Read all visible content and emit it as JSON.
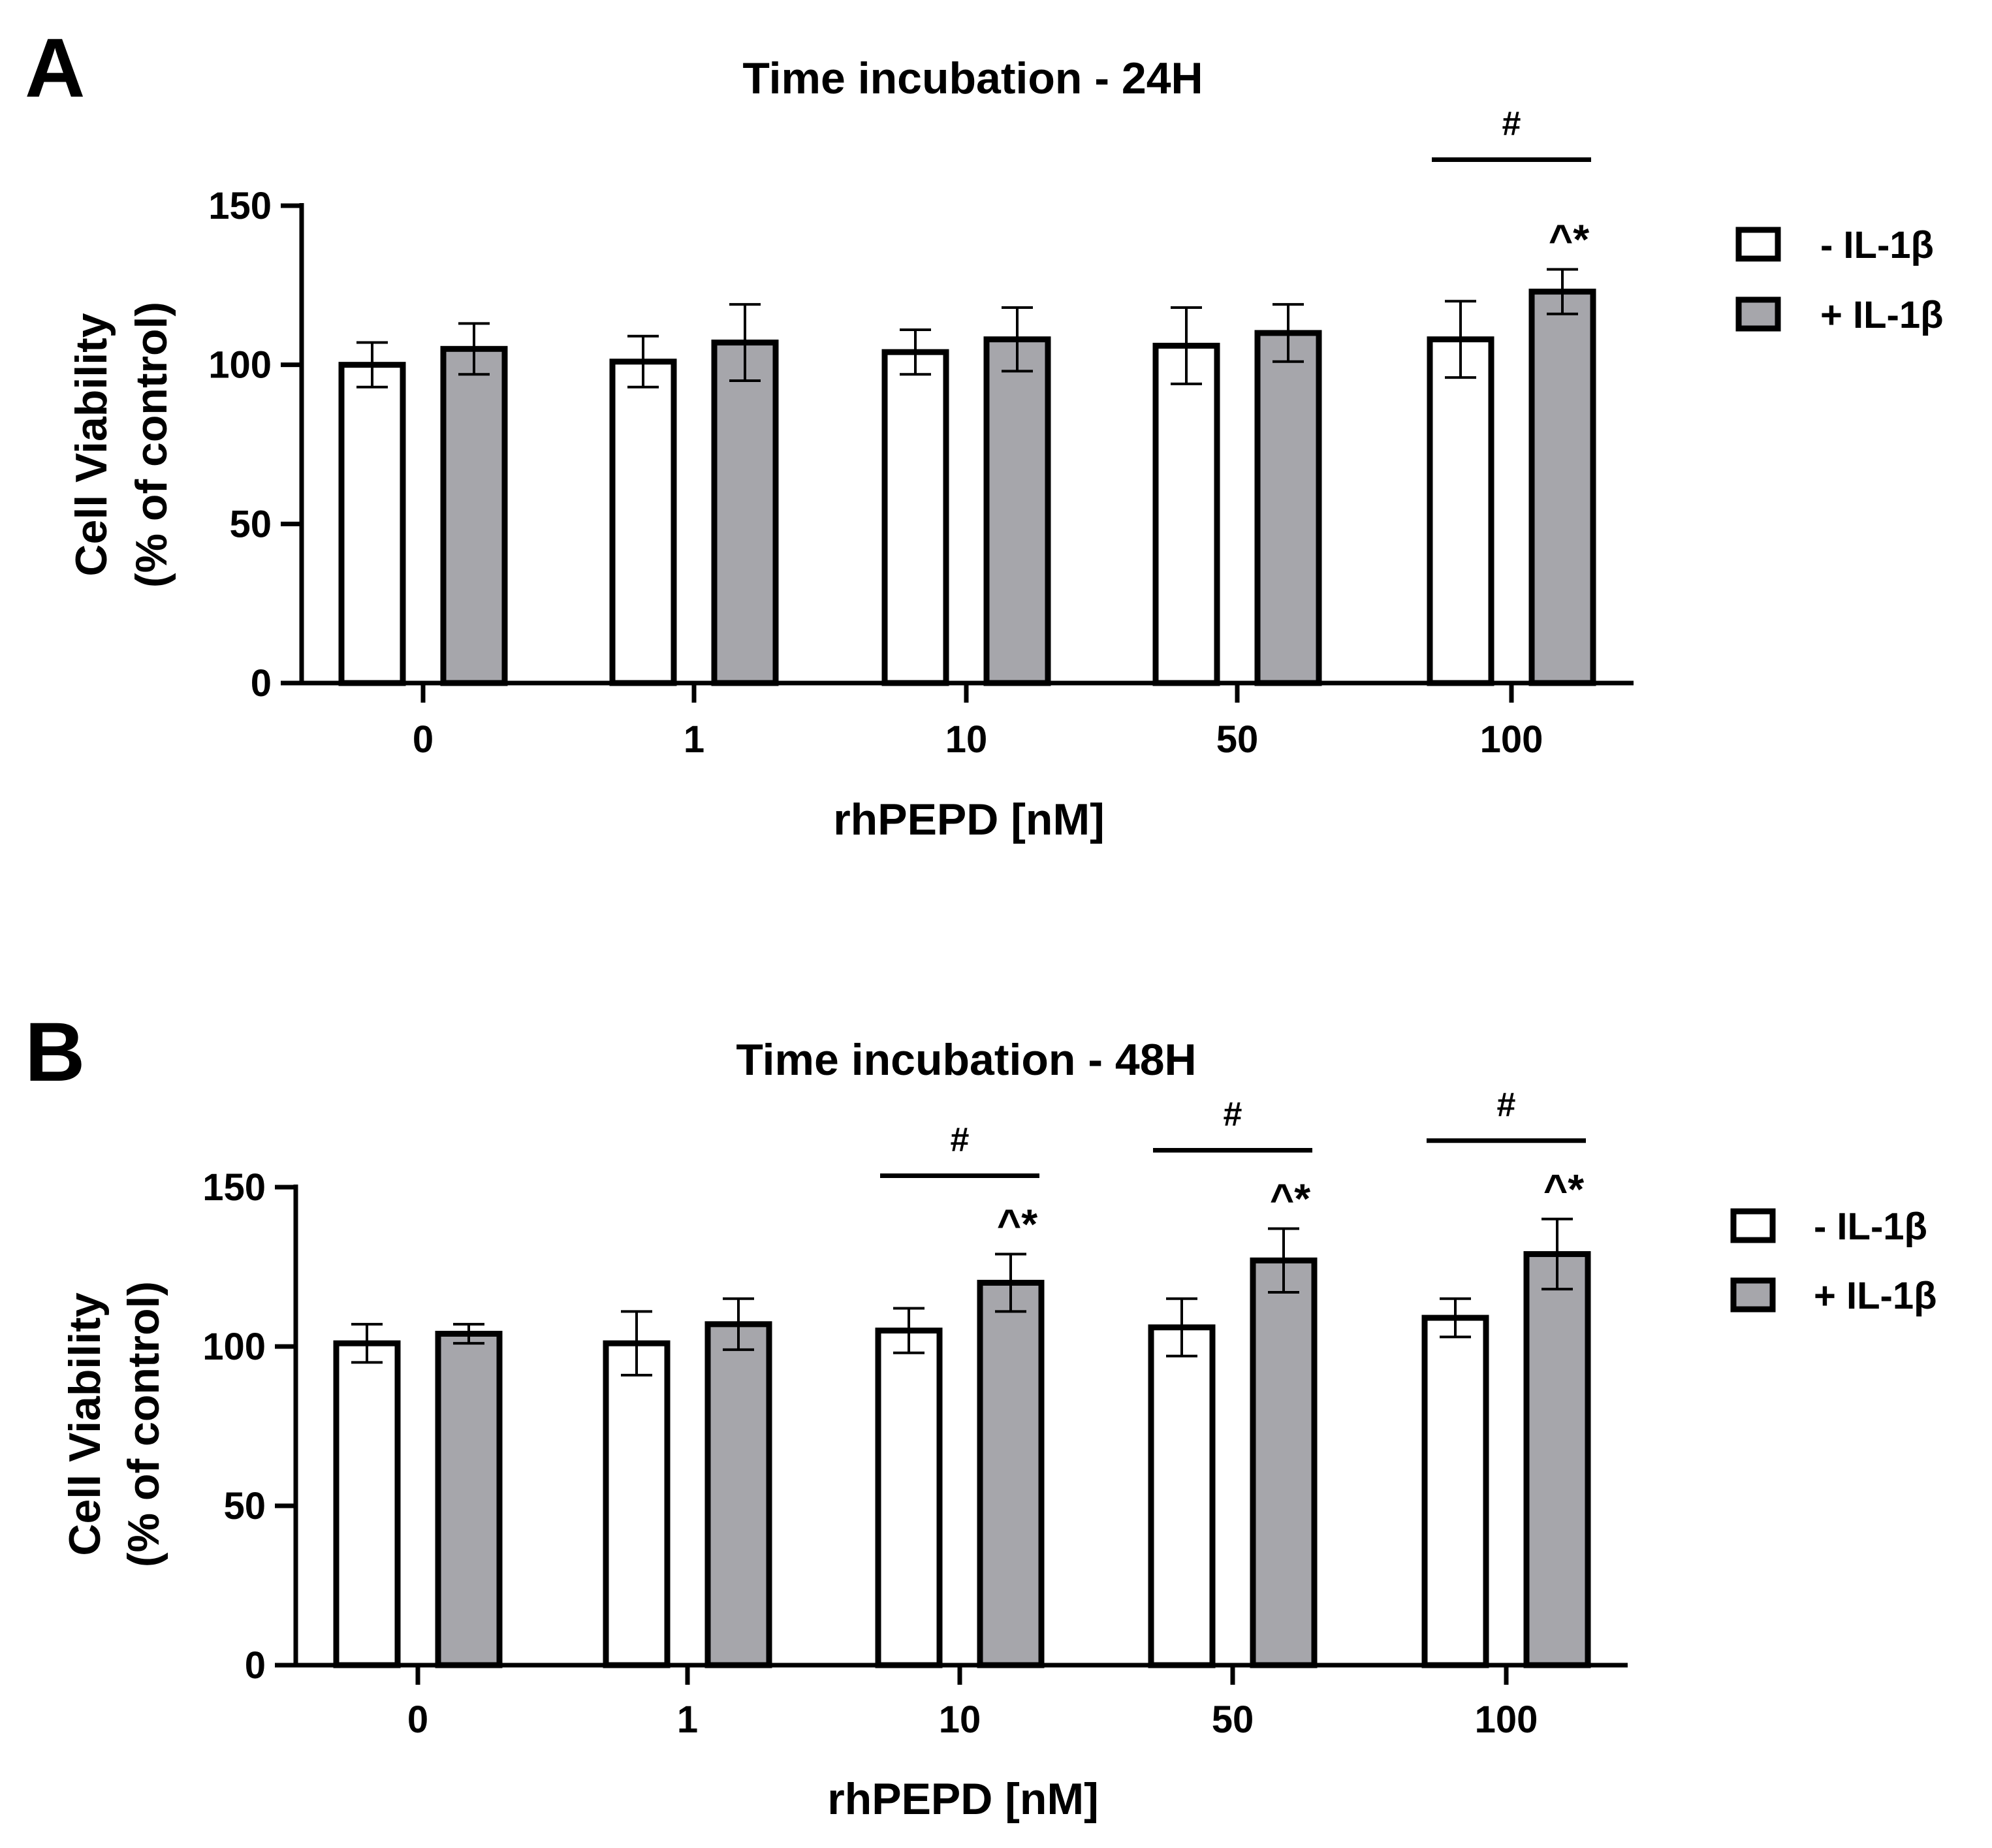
{
  "chart_data": [
    {
      "panel_label": "A",
      "type": "bar",
      "title": "Time incubation - 24H",
      "xlabel": "rhPEPD [nM]",
      "ylabel": [
        "Cell Viability",
        "(% of control)"
      ],
      "ylim": [
        0,
        150
      ],
      "yticks": [
        "0",
        "50",
        "100",
        "150"
      ],
      "categories": [
        "0",
        "1",
        "10",
        "50",
        "100"
      ],
      "series": [
        {
          "name": "- IL-1β",
          "color": "#ffffff",
          "values": [
            100,
            101,
            104,
            106,
            108
          ],
          "errors": [
            7,
            8,
            7,
            12,
            12
          ]
        },
        {
          "name": "+ IL-1β",
          "color": "#a6a6ab",
          "values": [
            105,
            107,
            108,
            110,
            123
          ],
          "errors": [
            8,
            12,
            10,
            9,
            7
          ]
        }
      ],
      "legend": [
        "- IL-1β",
        "+ IL-1β"
      ],
      "annotations": [
        {
          "category_index": 4,
          "hash": "#",
          "stars": "^*"
        }
      ]
    },
    {
      "panel_label": "B",
      "type": "bar",
      "title": "Time incubation - 48H",
      "xlabel": "rhPEPD [nM]",
      "ylabel": [
        "Cell Viability",
        "(% of control)"
      ],
      "ylim": [
        0,
        150
      ],
      "yticks": [
        "0",
        "50",
        "100",
        "150"
      ],
      "categories": [
        "0",
        "1",
        "10",
        "50",
        "100"
      ],
      "series": [
        {
          "name": "- IL-1β",
          "color": "#ffffff",
          "values": [
            101,
            101,
            105,
            106,
            109
          ],
          "errors": [
            6,
            10,
            7,
            9,
            6
          ]
        },
        {
          "name": "+ IL-1β",
          "color": "#a6a6ab",
          "values": [
            104,
            107,
            120,
            127,
            129
          ],
          "errors": [
            3,
            8,
            9,
            10,
            11
          ]
        }
      ],
      "legend": [
        "- IL-1β",
        "+ IL-1β"
      ],
      "annotations": [
        {
          "category_index": 2,
          "hash": "#",
          "stars": "^*"
        },
        {
          "category_index": 3,
          "hash": "#",
          "stars": "^*"
        },
        {
          "category_index": 4,
          "hash": "#",
          "stars": "^*"
        }
      ]
    }
  ]
}
